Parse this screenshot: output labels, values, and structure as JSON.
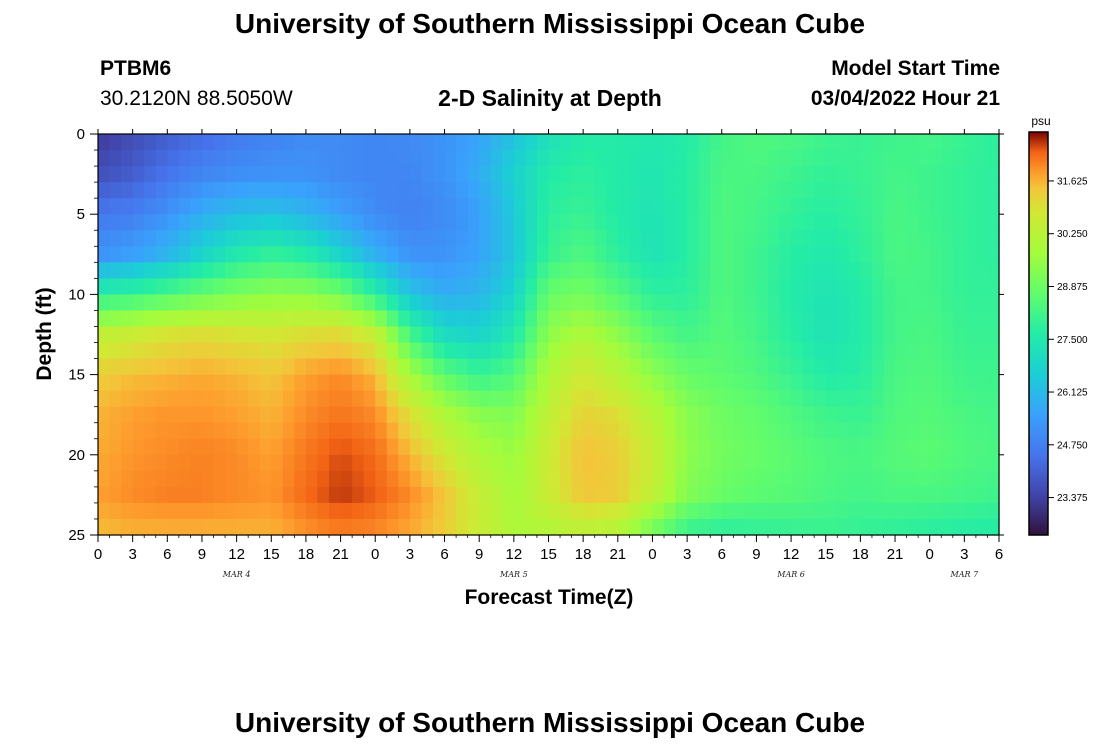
{
  "page": {
    "title": "University of Southern Mississippi Ocean Cube",
    "footer_title": "University of Southern Mississippi Ocean Cube"
  },
  "header": {
    "station": "PTBM6",
    "coords": "30.2120N  88.5050W",
    "plot_title": "2-D Salinity at Depth",
    "model_label": "Model Start Time",
    "model_time": "03/04/2022 Hour 21"
  },
  "chart_data": {
    "type": "heatmap",
    "title": "2-D Salinity at Depth",
    "xlabel": "Forecast Time(Z)",
    "ylabel": "Depth (ft)",
    "xlim": [
      0,
      78
    ],
    "ylim": [
      25,
      0
    ],
    "x_ticks": [
      {
        "hour": 0,
        "label": "0"
      },
      {
        "hour": 3,
        "label": "3"
      },
      {
        "hour": 6,
        "label": "6"
      },
      {
        "hour": 9,
        "label": "9"
      },
      {
        "hour": 12,
        "label": "12"
      },
      {
        "hour": 15,
        "label": "15"
      },
      {
        "hour": 18,
        "label": "18"
      },
      {
        "hour": 21,
        "label": "21"
      },
      {
        "hour": 24,
        "label": "0"
      },
      {
        "hour": 27,
        "label": "3"
      },
      {
        "hour": 30,
        "label": "6"
      },
      {
        "hour": 33,
        "label": "9"
      },
      {
        "hour": 36,
        "label": "12"
      },
      {
        "hour": 39,
        "label": "15"
      },
      {
        "hour": 42,
        "label": "18"
      },
      {
        "hour": 45,
        "label": "21"
      },
      {
        "hour": 48,
        "label": "0"
      },
      {
        "hour": 51,
        "label": "3"
      },
      {
        "hour": 54,
        "label": "6"
      },
      {
        "hour": 57,
        "label": "9"
      },
      {
        "hour": 60,
        "label": "12"
      },
      {
        "hour": 63,
        "label": "15"
      },
      {
        "hour": 66,
        "label": "18"
      },
      {
        "hour": 69,
        "label": "21"
      },
      {
        "hour": 72,
        "label": "0"
      },
      {
        "hour": 75,
        "label": "3"
      },
      {
        "hour": 78,
        "label": "6"
      }
    ],
    "y_ticks": [
      {
        "depth": 0,
        "label": "0"
      },
      {
        "depth": 5,
        "label": "5"
      },
      {
        "depth": 10,
        "label": "10"
      },
      {
        "depth": 15,
        "label": "15"
      },
      {
        "depth": 20,
        "label": "20"
      },
      {
        "depth": 25,
        "label": "25"
      }
    ],
    "date_labels": [
      {
        "hour": 12,
        "label": "MAR 4"
      },
      {
        "hour": 36,
        "label": "MAR 5"
      },
      {
        "hour": 60,
        "label": "MAR 6"
      },
      {
        "hour": 75,
        "label": "MAR 7"
      }
    ],
    "colorbar": {
      "unit": "psu",
      "min": 22.4,
      "max": 32.9,
      "ticks": [
        "31.625",
        "30.250",
        "28.875",
        "27.500",
        "26.125",
        "24.750",
        "23.375"
      ]
    },
    "grid_hours": [
      0,
      3,
      6,
      9,
      12,
      15,
      18,
      21,
      24,
      27,
      30,
      33,
      36,
      39,
      42,
      45,
      48,
      51,
      54,
      57,
      60,
      63,
      66,
      69,
      72,
      75,
      78
    ],
    "grid_depths": [
      0,
      2.5,
      5,
      7.5,
      10,
      12.5,
      15,
      17.5,
      20,
      22.5,
      25
    ],
    "salinity": [
      [
        23.2,
        23.6,
        24.0,
        24.3,
        24.6,
        24.8,
        25.0,
        25.0,
        24.9,
        25.0,
        25.2,
        25.6,
        26.3,
        27.2,
        27.6,
        27.6,
        27.5,
        27.6,
        28.2,
        28.4,
        28.3,
        28.1,
        28.0,
        28.1,
        28.2,
        28.0,
        27.8
      ],
      [
        23.7,
        24.0,
        24.5,
        24.9,
        25.1,
        25.2,
        25.2,
        25.0,
        24.9,
        24.9,
        25.2,
        25.8,
        26.7,
        27.6,
        27.8,
        27.6,
        27.4,
        27.7,
        28.3,
        28.3,
        28.1,
        27.9,
        28.0,
        28.2,
        28.1,
        27.9,
        27.8
      ],
      [
        24.6,
        24.7,
        25.2,
        25.8,
        26.2,
        26.3,
        26.0,
        25.5,
        25.0,
        24.8,
        25.0,
        25.5,
        26.5,
        27.8,
        28.0,
        27.6,
        27.3,
        27.7,
        28.4,
        28.2,
        27.9,
        27.7,
        27.9,
        28.3,
        28.1,
        27.9,
        27.8
      ],
      [
        25.2,
        25.5,
        26.0,
        26.8,
        27.5,
        27.9,
        27.6,
        26.8,
        25.9,
        25.2,
        25.2,
        25.6,
        26.4,
        28.0,
        28.4,
        27.8,
        27.3,
        27.7,
        28.4,
        28.1,
        27.7,
        27.5,
        27.8,
        28.3,
        28.2,
        27.9,
        27.8
      ],
      [
        27.8,
        28.0,
        28.4,
        28.8,
        29.2,
        29.4,
        29.4,
        29.0,
        27.8,
        26.4,
        25.8,
        26.0,
        26.8,
        28.8,
        29.0,
        28.5,
        27.8,
        27.8,
        28.4,
        28.1,
        27.6,
        27.3,
        27.6,
        28.2,
        28.2,
        27.9,
        27.9
      ],
      [
        30.4,
        30.6,
        30.9,
        31.0,
        30.9,
        30.8,
        31.0,
        31.1,
        30.5,
        28.2,
        27.0,
        26.8,
        27.5,
        29.4,
        30.0,
        29.4,
        28.6,
        28.2,
        28.5,
        28.2,
        27.7,
        27.3,
        27.6,
        28.2,
        28.3,
        28.0,
        28.0
      ],
      [
        31.3,
        31.5,
        31.6,
        31.7,
        31.6,
        31.4,
        31.8,
        32.0,
        31.6,
        29.8,
        28.6,
        28.0,
        28.4,
        30.0,
        30.8,
        30.2,
        29.4,
        28.8,
        28.6,
        28.4,
        28.0,
        27.6,
        27.7,
        28.3,
        28.4,
        28.1,
        28.1
      ],
      [
        31.6,
        31.8,
        31.9,
        31.9,
        31.8,
        31.6,
        32.0,
        32.2,
        32.0,
        31.0,
        30.0,
        29.3,
        29.2,
        30.4,
        31.2,
        31.0,
        30.2,
        29.3,
        28.9,
        28.7,
        28.4,
        28.1,
        28.0,
        28.4,
        28.5,
        28.3,
        28.2
      ],
      [
        31.7,
        31.9,
        32.0,
        32.1,
        32.0,
        31.8,
        32.2,
        32.5,
        32.3,
        31.6,
        30.8,
        30.0,
        29.6,
        30.7,
        31.5,
        31.3,
        30.6,
        29.4,
        29.0,
        28.8,
        28.6,
        28.4,
        28.3,
        28.5,
        28.6,
        28.4,
        28.3
      ],
      [
        31.8,
        32.0,
        32.1,
        32.1,
        32.0,
        31.9,
        32.3,
        32.6,
        32.4,
        32.0,
        31.4,
        30.5,
        29.8,
        30.6,
        31.4,
        31.3,
        30.4,
        29.2,
        28.8,
        28.6,
        28.5,
        28.3,
        28.2,
        28.3,
        28.3,
        28.2,
        28.1
      ],
      [
        31.5,
        31.6,
        31.6,
        31.6,
        31.6,
        31.6,
        31.9,
        32.1,
        32.0,
        31.7,
        31.3,
        30.6,
        30.0,
        30.0,
        30.2,
        30.0,
        28.8,
        27.9,
        27.7,
        27.8,
        27.9,
        28.0,
        27.9,
        27.8,
        27.7,
        27.6,
        27.6
      ]
    ]
  }
}
